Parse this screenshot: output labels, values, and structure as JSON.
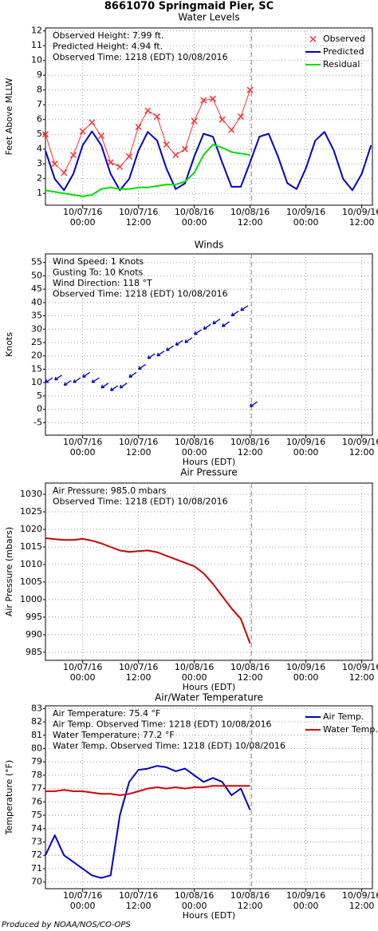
{
  "title": "8661070 Springmaid Pier, SC",
  "footer": "Produced by NOAA/NOS/CO-OPS",
  "chart_data": [
    {
      "type": "line",
      "title": "Water Levels",
      "ylabel": "Feet Above MLLW",
      "annotations": [
        "Observed Height:  7.99 ft.",
        "Predicted Height:  4.94 ft.",
        "Observed Time: 1218 (EDT) 10/08/2016"
      ],
      "x": [
        "10/06/16 16:00",
        "10/06/16 18:00",
        "10/06/16 20:00",
        "10/06/16 22:00",
        "10/07/16 00:00",
        "10/07/16 02:00",
        "10/07/16 04:00",
        "10/07/16 06:00",
        "10/07/16 08:00",
        "10/07/16 10:00",
        "10/07/16 12:00",
        "10/07/16 14:00",
        "10/07/16 16:00",
        "10/07/16 18:00",
        "10/07/16 20:00",
        "10/07/16 22:00",
        "10/08/16 00:00",
        "10/08/16 02:00",
        "10/08/16 04:00",
        "10/08/16 06:00",
        "10/08/16 08:00",
        "10/08/16 10:00",
        "10/08/16 12:00",
        "10/08/16 14:00",
        "10/08/16 16:00",
        "10/08/16 18:00",
        "10/08/16 20:00",
        "10/08/16 22:00",
        "10/09/16 00:00",
        "10/09/16 02:00",
        "10/09/16 04:00",
        "10/09/16 06:00",
        "10/09/16 08:00",
        "10/09/16 10:00",
        "10/09/16 12:00",
        "10/09/16 14:00"
      ],
      "series": [
        {
          "name": "Observed",
          "color": "#ff3030",
          "marker": "x",
          "values": [
            5.0,
            3.0,
            2.4,
            3.6,
            5.2,
            5.8,
            4.9,
            3.1,
            2.8,
            3.5,
            5.5,
            6.6,
            6.2,
            4.3,
            3.6,
            4.0,
            5.9,
            7.3,
            7.4,
            6.0,
            5.3,
            6.2,
            8.0,
            null,
            null,
            null,
            null,
            null,
            null,
            null,
            null,
            null,
            null,
            null,
            null,
            null
          ]
        },
        {
          "name": "Predicted",
          "color": "#0000cc",
          "values": [
            3.89,
            1.98,
            1.21,
            2.32,
            4.26,
            5.2,
            4.26,
            2.32,
            1.21,
            1.98,
            3.89,
            5.16,
            4.58,
            2.7,
            1.29,
            1.68,
            3.5,
            5.04,
            4.84,
            3.1,
            1.45,
            1.45,
            3.1,
            4.84,
            5.04,
            3.5,
            1.69,
            1.29,
            2.7,
            4.57,
            5.16,
            3.9,
            1.98,
            1.21,
            2.32,
            4.26
          ]
        },
        {
          "name": "Residual",
          "color": "#00dd00",
          "values": [
            1.2,
            1.1,
            1.0,
            0.9,
            0.8,
            0.9,
            1.3,
            1.4,
            1.3,
            1.3,
            1.4,
            1.4,
            1.5,
            1.6,
            1.6,
            1.8,
            2.4,
            3.6,
            4.3,
            4.1,
            3.8,
            3.7,
            3.6,
            null,
            null,
            null,
            null,
            null,
            null,
            null,
            null,
            null,
            null,
            null,
            null,
            null
          ]
        }
      ],
      "xlim": [
        "10/06/16 16:00",
        "10/09/16 14:18"
      ],
      "xticks": [
        {
          "value": "10/07/16 00:00",
          "label": [
            "10/07/16",
            "00:00"
          ]
        },
        {
          "value": "10/07/16 12:00",
          "label": [
            "10/07/16",
            "12:00"
          ]
        },
        {
          "value": "10/08/16 00:00",
          "label": [
            "10/08/16",
            "00:00"
          ]
        },
        {
          "value": "10/08/16 12:00",
          "label": [
            "10/08/16",
            "12:00"
          ]
        },
        {
          "value": "10/09/16 00:00",
          "label": [
            "10/09/16",
            "00:00"
          ]
        },
        {
          "value": "10/09/16 12:00",
          "label": [
            "10/09/16",
            "12:00"
          ]
        }
      ],
      "ylim": [
        0.2,
        12.2
      ],
      "yticks": [
        1,
        2,
        3,
        4,
        5,
        6,
        7,
        8,
        9,
        10,
        11,
        12
      ],
      "grid": true,
      "legend": "upper right",
      "now": "10/08/16 12:18"
    },
    {
      "type": "scatter",
      "title": "Winds",
      "ylabel": "Knots",
      "xlabel": "Hours (EDT)",
      "marker": "arrow",
      "color": "#0000cc",
      "annotations": [
        "Wind Speed: 1 Knots",
        "Gusting To: 10 Knots",
        "Wind Direction: 118 °T",
        "Observed Time: 1218 (EDT) 10/08/2016"
      ],
      "x": [
        "10/06/16 16:00",
        "10/06/16 18:00",
        "10/06/16 20:00",
        "10/06/16 22:00",
        "10/07/16 00:00",
        "10/07/16 02:00",
        "10/07/16 04:00",
        "10/07/16 06:00",
        "10/07/16 08:00",
        "10/07/16 10:00",
        "10/07/16 12:00",
        "10/07/16 14:00",
        "10/07/16 16:00",
        "10/07/16 18:00",
        "10/07/16 20:00",
        "10/07/16 22:00",
        "10/08/16 00:00",
        "10/08/16 02:00",
        "10/08/16 04:00",
        "10/08/16 06:00",
        "10/08/16 08:00",
        "10/08/16 10:00",
        "10/08/16 12:00"
      ],
      "values": [
        10,
        11,
        9,
        10,
        12,
        10,
        8,
        7,
        8,
        12,
        15,
        19,
        20,
        22,
        24,
        25,
        28,
        30,
        32,
        31,
        35,
        37,
        1
      ],
      "xlim": [
        "10/06/16 16:00",
        "10/09/16 14:18"
      ],
      "xticks": [
        {
          "value": "10/07/16 00:00",
          "label": [
            "10/07/16",
            "00:00"
          ]
        },
        {
          "value": "10/07/16 12:00",
          "label": [
            "10/07/16",
            "12:00"
          ]
        },
        {
          "value": "10/08/16 00:00",
          "label": [
            "10/08/16",
            "00:00"
          ]
        },
        {
          "value": "10/08/16 12:00",
          "label": [
            "10/08/16",
            "12:00"
          ]
        },
        {
          "value": "10/09/16 00:00",
          "label": [
            "10/09/16",
            "00:00"
          ]
        },
        {
          "value": "10/09/16 12:00",
          "label": [
            "10/09/16",
            "12:00"
          ]
        }
      ],
      "ylim": [
        -9.7,
        58.2
      ],
      "yticks": [
        -5,
        0,
        5,
        10,
        15,
        20,
        25,
        30,
        35,
        40,
        45,
        50,
        55
      ],
      "grid": true,
      "now": "10/08/16 12:18"
    },
    {
      "type": "line",
      "title": "Air Pressure",
      "ylabel": "Air Pressure (mbars)",
      "xlabel": "Hours (EDT)",
      "color": "#cc0000",
      "annotations": [
        "Air Pressure: 985.0 mbars",
        "Observed Time: 1218 (EDT) 10/08/2016"
      ],
      "x": [
        "10/06/16 16:00",
        "10/06/16 18:00",
        "10/06/16 20:00",
        "10/06/16 22:00",
        "10/07/16 00:00",
        "10/07/16 02:00",
        "10/07/16 04:00",
        "10/07/16 06:00",
        "10/07/16 08:00",
        "10/07/16 10:00",
        "10/07/16 12:00",
        "10/07/16 14:00",
        "10/07/16 16:00",
        "10/07/16 18:00",
        "10/07/16 20:00",
        "10/07/16 22:00",
        "10/08/16 00:00",
        "10/08/16 02:00",
        "10/08/16 04:00",
        "10/08/16 06:00",
        "10/08/16 08:00",
        "10/08/16 10:00",
        "10/08/16 12:00"
      ],
      "values": [
        1017.5,
        1017.2,
        1017.0,
        1017.0,
        1017.3,
        1016.8,
        1016.0,
        1015.0,
        1014.0,
        1013.6,
        1013.8,
        1014.0,
        1013.5,
        1012.5,
        1011.5,
        1010.5,
        1009.5,
        1007.5,
        1004.5,
        1001.0,
        997.5,
        994.5,
        987.5
      ],
      "xlim": [
        "10/06/16 16:00",
        "10/09/16 14:18"
      ],
      "xticks": [
        {
          "value": "10/07/16 00:00",
          "label": [
            "10/07/16",
            "00:00"
          ]
        },
        {
          "value": "10/07/16 12:00",
          "label": [
            "10/07/16",
            "12:00"
          ]
        },
        {
          "value": "10/08/16 00:00",
          "label": [
            "10/08/16",
            "00:00"
          ]
        },
        {
          "value": "10/08/16 12:00",
          "label": [
            "10/08/16",
            "12:00"
          ]
        },
        {
          "value": "10/09/16 00:00",
          "label": [
            "10/09/16",
            "00:00"
          ]
        },
        {
          "value": "10/09/16 12:00",
          "label": [
            "10/09/16",
            "12:00"
          ]
        }
      ],
      "ylim": [
        982.7,
        1033.2
      ],
      "yticks": [
        985,
        990,
        995,
        1000,
        1005,
        1010,
        1015,
        1020,
        1025,
        1030
      ],
      "grid": true,
      "now": "10/08/16 12:18"
    },
    {
      "type": "line",
      "title": "Air/Water Temperature",
      "ylabel": "Temperature (°F)",
      "xlabel": "Hours (EDT)",
      "annotations": [
        "Air Temperature:  75.4 °F",
        "Air Temp. Observed Time: 1218 (EDT) 10/08/2016",
        "Water Temperature:  77.2 °F",
        "Water Temp. Observed Time: 1218 (EDT) 10/08/2016"
      ],
      "x": [
        "10/06/16 16:00",
        "10/06/16 18:00",
        "10/06/16 20:00",
        "10/06/16 22:00",
        "10/07/16 00:00",
        "10/07/16 02:00",
        "10/07/16 04:00",
        "10/07/16 06:00",
        "10/07/16 08:00",
        "10/07/16 10:00",
        "10/07/16 12:00",
        "10/07/16 14:00",
        "10/07/16 16:00",
        "10/07/16 18:00",
        "10/07/16 20:00",
        "10/07/16 22:00",
        "10/08/16 00:00",
        "10/08/16 02:00",
        "10/08/16 04:00",
        "10/08/16 06:00",
        "10/08/16 08:00",
        "10/08/16 10:00",
        "10/08/16 12:00"
      ],
      "series": [
        {
          "name": "Air Temp.",
          "color": "#0000cc",
          "values": [
            72.0,
            73.5,
            72.0,
            71.5,
            71.0,
            70.5,
            70.3,
            70.5,
            75.0,
            77.5,
            78.4,
            78.5,
            78.7,
            78.6,
            78.3,
            78.5,
            78.0,
            77.5,
            77.8,
            77.5,
            76.5,
            77.0,
            75.4
          ]
        },
        {
          "name": "Water Temp.",
          "color": "#dd0000",
          "values": [
            76.8,
            76.8,
            76.9,
            76.8,
            76.8,
            76.7,
            76.6,
            76.6,
            76.5,
            76.6,
            76.8,
            77.0,
            77.1,
            77.0,
            77.1,
            77.0,
            77.1,
            77.1,
            77.2,
            77.2,
            77.2,
            77.2,
            77.2
          ]
        }
      ],
      "xlim": [
        "10/06/16 16:00",
        "10/09/16 14:18"
      ],
      "xticks": [
        {
          "value": "10/07/16 00:00",
          "label": [
            "10/07/16",
            "00:00"
          ]
        },
        {
          "value": "10/07/16 12:00",
          "label": [
            "10/07/16",
            "12:00"
          ]
        },
        {
          "value": "10/08/16 00:00",
          "label": [
            "10/08/16",
            "00:00"
          ]
        },
        {
          "value": "10/08/16 12:00",
          "label": [
            "10/08/16",
            "12:00"
          ]
        },
        {
          "value": "10/09/16 00:00",
          "label": [
            "10/09/16",
            "00:00"
          ]
        },
        {
          "value": "10/09/16 12:00",
          "label": [
            "10/09/16",
            "12:00"
          ]
        }
      ],
      "ylim": [
        69.5,
        83.2
      ],
      "yticks": [
        70,
        71,
        72,
        73,
        74,
        75,
        76,
        77,
        78,
        79,
        80,
        81,
        82,
        83
      ],
      "grid": true,
      "legend": "upper right",
      "now": "10/08/16 12:18"
    }
  ]
}
